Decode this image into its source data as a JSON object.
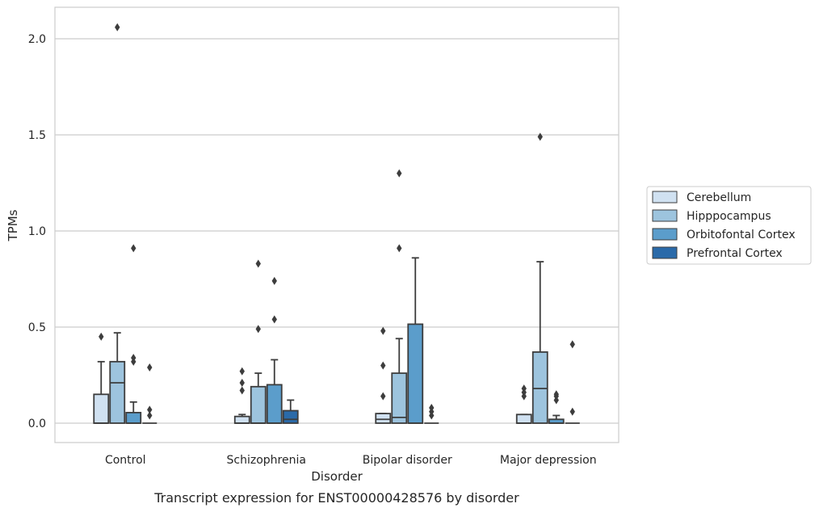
{
  "chart_data": {
    "type": "box",
    "caption": "Transcript expression for ENST00000428576 by disorder",
    "xlabel": "Disorder",
    "ylabel": "TPMs",
    "ylim": [
      -0.1,
      2.17
    ],
    "yticks": [
      0.0,
      0.5,
      1.0,
      1.5,
      2.0
    ],
    "ytick_labels": [
      "0.0",
      "0.5",
      "1.0",
      "1.5",
      "2.0"
    ],
    "grid": "horizontal",
    "legend_position": "right",
    "categories": [
      "Control",
      "Schizophrenia",
      "Bipolar disorder",
      "Major depression"
    ],
    "series": [
      {
        "name": "Cerebellum",
        "color": "#d0e1f1",
        "boxes": [
          {
            "q1": 0.0,
            "median": 0.0,
            "q3": 0.15,
            "whislo": 0.0,
            "whishi": 0.32,
            "fliers": [
              0.45
            ]
          },
          {
            "q1": 0.0,
            "median": 0.0,
            "q3": 0.035,
            "whislo": 0.0,
            "whishi": 0.045,
            "fliers": [
              0.17,
              0.21,
              0.27
            ]
          },
          {
            "q1": 0.0,
            "median": 0.02,
            "q3": 0.05,
            "whislo": 0.0,
            "whishi": 0.05,
            "fliers": [
              0.14,
              0.3,
              0.48
            ]
          },
          {
            "q1": 0.0,
            "median": 0.0,
            "q3": 0.045,
            "whislo": 0.0,
            "whishi": 0.045,
            "fliers": [
              0.14,
              0.16,
              0.18
            ]
          }
        ]
      },
      {
        "name": "Hipppocampus",
        "color": "#9dc4de",
        "boxes": [
          {
            "q1": 0.0,
            "median": 0.21,
            "q3": 0.32,
            "whislo": 0.0,
            "whishi": 0.47,
            "fliers": [
              2.06
            ]
          },
          {
            "q1": 0.0,
            "median": 0.0,
            "q3": 0.19,
            "whislo": 0.0,
            "whishi": 0.26,
            "fliers": [
              0.49,
              0.83
            ]
          },
          {
            "q1": 0.0,
            "median": 0.03,
            "q3": 0.26,
            "whislo": 0.0,
            "whishi": 0.44,
            "fliers": [
              0.91,
              1.3
            ]
          },
          {
            "q1": 0.0,
            "median": 0.18,
            "q3": 0.37,
            "whislo": 0.0,
            "whishi": 0.84,
            "fliers": [
              1.49
            ]
          }
        ]
      },
      {
        "name": "Orbitofontal Cortex",
        "color": "#5b9dcb",
        "boxes": [
          {
            "q1": 0.0,
            "median": 0.0,
            "q3": 0.055,
            "whislo": 0.0,
            "whishi": 0.11,
            "fliers": [
              0.32,
              0.34,
              0.91
            ]
          },
          {
            "q1": 0.0,
            "median": 0.0,
            "q3": 0.2,
            "whislo": 0.0,
            "whishi": 0.33,
            "fliers": [
              0.54,
              0.74
            ]
          },
          {
            "q1": 0.0,
            "median": 0.0,
            "q3": 0.515,
            "whislo": 0.0,
            "whishi": 0.86,
            "fliers": []
          },
          {
            "q1": 0.0,
            "median": 0.0,
            "q3": 0.02,
            "whislo": 0.0,
            "whishi": 0.04,
            "fliers": [
              0.12,
              0.14,
              0.15
            ]
          }
        ]
      },
      {
        "name": "Prefrontal Cortex",
        "color": "#2a6aa9",
        "boxes": [
          {
            "q1": 0.0,
            "median": 0.0,
            "q3": 0.0,
            "whislo": 0.0,
            "whishi": 0.0,
            "fliers": [
              0.04,
              0.07,
              0.29
            ]
          },
          {
            "q1": 0.0,
            "median": 0.02,
            "q3": 0.065,
            "whislo": 0.0,
            "whishi": 0.12,
            "fliers": []
          },
          {
            "q1": 0.0,
            "median": 0.0,
            "q3": 0.0,
            "whislo": 0.0,
            "whishi": 0.0,
            "fliers": [
              0.04,
              0.06,
              0.08
            ]
          },
          {
            "q1": 0.0,
            "median": 0.0,
            "q3": 0.0,
            "whislo": 0.0,
            "whishi": 0.0,
            "fliers": [
              0.06,
              0.41
            ]
          }
        ]
      }
    ]
  }
}
